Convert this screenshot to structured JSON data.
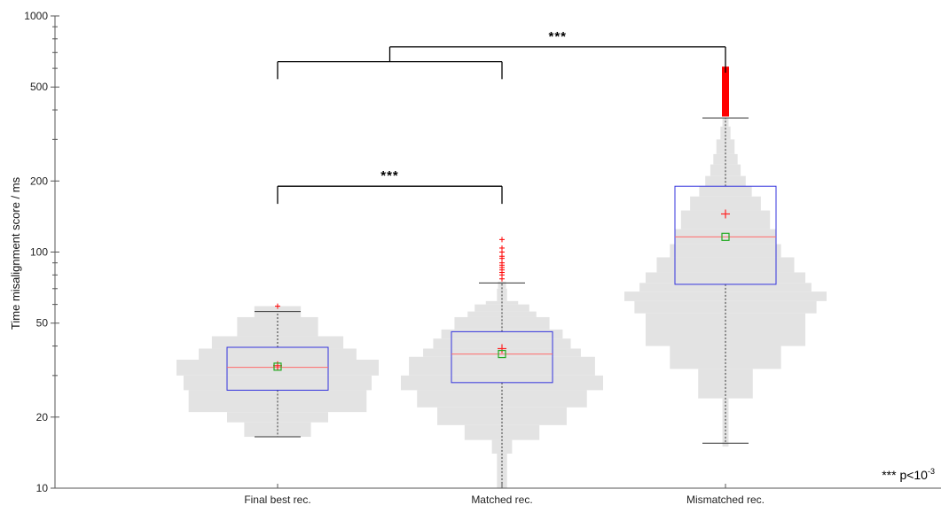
{
  "chart_data": {
    "type": "box",
    "ylabel": "Time misalignment score / ms",
    "yscale": "log",
    "ylim": [
      10,
      1000
    ],
    "ymajor_ticks": [
      10,
      20,
      50,
      100,
      200,
      500,
      1000
    ],
    "ymajor_tick_labels": [
      "10",
      "20",
      "50",
      "100",
      "200",
      "500",
      "1000"
    ],
    "yminor_ticks": [
      30,
      40,
      60,
      70,
      80,
      90,
      300,
      400,
      600,
      700,
      800,
      900
    ],
    "grid": false,
    "categories": [
      "Final best rec.",
      "Matched rec.",
      "Mismatched rec."
    ],
    "boxes": [
      {
        "category": "Final best rec.",
        "whisker_low": 16.5,
        "q1": 26,
        "median": 32.5,
        "q3": 39.5,
        "whisker_high": 56,
        "mean": 33,
        "mean_marker_value": 32.7,
        "outliers": [
          59
        ]
      },
      {
        "category": "Matched rec.",
        "whisker_low": 10,
        "q1": 28,
        "median": 37,
        "q3": 46,
        "whisker_high": 74,
        "mean": 39,
        "mean_marker_value": 37,
        "outliers": [
          77,
          80,
          82,
          84,
          86,
          88,
          90,
          94,
          96,
          100,
          104,
          113
        ]
      },
      {
        "category": "Mismatched rec.",
        "whisker_low": 15.5,
        "q1": 73,
        "median": 116,
        "q3": 190,
        "whisker_high": 370,
        "mean": 145,
        "mean_marker_value": 116,
        "outliers_range": [
          375,
          610
        ]
      }
    ],
    "histograms": [
      {
        "category": "Final best rec.",
        "bins": [
          [
            16.5,
            19,
            0.33
          ],
          [
            19,
            21,
            0.5
          ],
          [
            21,
            26,
            0.88
          ],
          [
            26,
            30,
            0.93
          ],
          [
            30,
            35,
            1.0
          ],
          [
            35,
            39,
            0.78
          ],
          [
            39,
            44,
            0.65
          ],
          [
            44,
            53,
            0.4
          ],
          [
            53,
            59,
            0.23
          ]
        ]
      },
      {
        "category": "Matched rec.",
        "bins": [
          [
            10,
            14,
            0.05
          ],
          [
            14,
            16,
            0.1
          ],
          [
            16,
            18.5,
            0.37
          ],
          [
            18.5,
            22,
            0.64
          ],
          [
            22,
            26,
            0.84
          ],
          [
            26,
            30,
            1.0
          ],
          [
            30,
            36,
            0.92
          ],
          [
            36,
            39,
            0.78
          ],
          [
            39,
            43,
            0.68
          ],
          [
            43,
            47,
            0.6
          ],
          [
            47,
            53,
            0.47
          ],
          [
            53,
            56,
            0.34
          ],
          [
            56,
            60,
            0.27
          ],
          [
            60,
            62,
            0.16
          ],
          [
            62,
            70,
            0.05
          ],
          [
            70,
            75,
            0.04
          ]
        ]
      },
      {
        "category": "Mismatched rec.",
        "bins": [
          [
            15,
            24,
            0.03
          ],
          [
            24,
            32,
            0.27
          ],
          [
            32,
            40,
            0.55
          ],
          [
            40,
            55,
            0.79
          ],
          [
            55,
            62,
            0.9
          ],
          [
            62,
            68,
            1.0
          ],
          [
            68,
            74,
            0.85
          ],
          [
            74,
            82,
            0.79
          ],
          [
            82,
            95,
            0.68
          ],
          [
            95,
            108,
            0.55
          ],
          [
            108,
            125,
            0.5
          ],
          [
            125,
            150,
            0.44
          ],
          [
            150,
            172,
            0.35
          ],
          [
            172,
            190,
            0.26
          ],
          [
            190,
            210,
            0.2
          ],
          [
            210,
            235,
            0.15
          ],
          [
            235,
            260,
            0.12
          ],
          [
            260,
            300,
            0.09
          ],
          [
            300,
            340,
            0.05
          ],
          [
            340,
            370,
            0.03
          ]
        ]
      }
    ],
    "significance": [
      {
        "from": "Final best rec.",
        "to": "Matched rec.",
        "label": "***",
        "bar_value": 190,
        "leg_value": 160
      },
      {
        "from": "Final best rec.",
        "to": "Matched rec.",
        "label": "",
        "bar_value": 640,
        "leg_value": 540
      },
      {
        "from": "bracket-1-mid",
        "to": "Mismatched rec.",
        "label": "***",
        "bar_value": 740,
        "leg_value": 575
      }
    ],
    "note": {
      "prefix": "*** p<10",
      "superscript": "-3"
    },
    "colors": {
      "box": "#3333dd",
      "median": "#ff6b6b",
      "mean": "#ff2222",
      "mean_marker": "#22aa22",
      "outlier": "#ff0000",
      "histogram": "#e3e3e3",
      "whisker": "#333333",
      "axis": "#555555",
      "bracket": "#000000"
    }
  }
}
